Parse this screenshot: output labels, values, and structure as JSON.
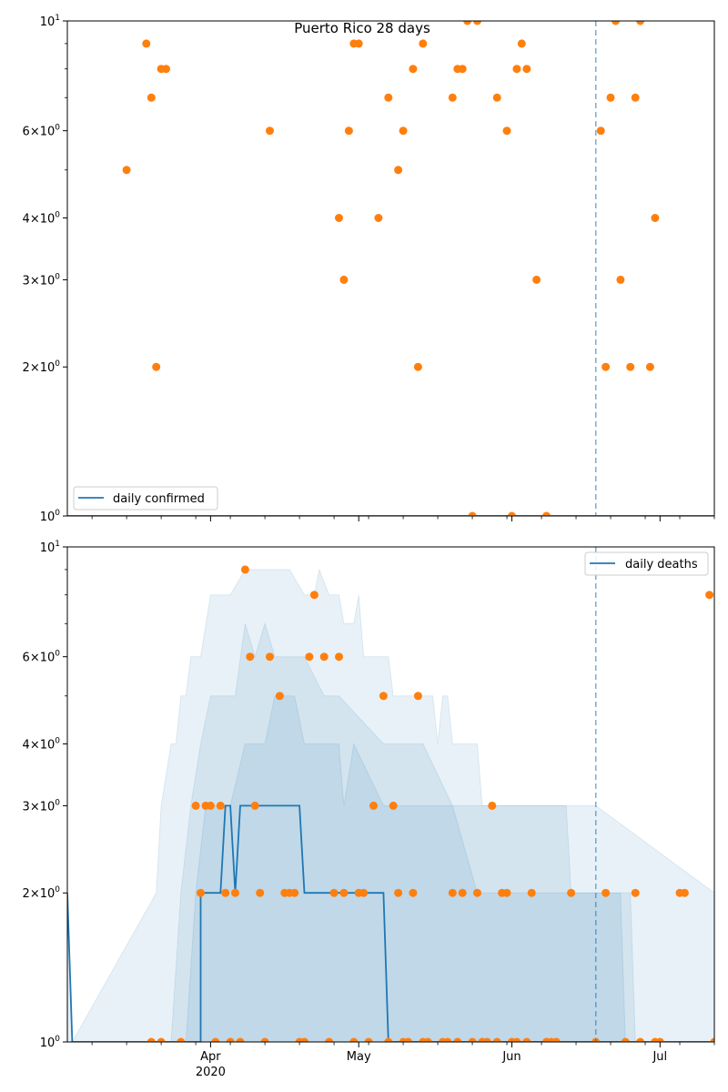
{
  "colors": {
    "line": "#1f77b4",
    "points": "#ff7f0e",
    "band": "#1f77b4",
    "vline": "#1f77b4"
  },
  "x_ticks": [
    {
      "date": "2020-04-01",
      "label": "Apr",
      "sublabel": "2020"
    },
    {
      "date": "2020-05-01",
      "label": "May",
      "sublabel": ""
    },
    {
      "date": "2020-06-01",
      "label": "Jun",
      "sublabel": ""
    },
    {
      "date": "2020-07-01",
      "label": "Jul",
      "sublabel": ""
    }
  ],
  "chart_data": [
    {
      "type": "scatter",
      "title": "Puerto Rico 28 days",
      "yscale": "log",
      "ylim": [
        1,
        10
      ],
      "xlim": [
        "2020-03-03",
        "2020-07-12"
      ],
      "y_tick_labels": [
        "10^0",
        "2×10^0",
        "3×10^0",
        "4×10^0",
        "6×10^0",
        "10^1"
      ],
      "y_ticks": [
        1,
        2,
        3,
        4,
        6,
        10
      ],
      "vline_date": "2020-06-18",
      "legend": {
        "position": "lower-left",
        "entries": [
          "daily confirmed"
        ]
      },
      "line": {
        "name": "daily confirmed",
        "x": [
          "2020-03-03",
          "2020-07-12"
        ],
        "y": [
          1,
          1
        ]
      },
      "points": {
        "x": [
          "2020-03-15",
          "2020-03-19",
          "2020-03-20",
          "2020-03-21",
          "2020-03-22",
          "2020-03-23",
          "2020-04-13",
          "2020-04-27",
          "2020-04-28",
          "2020-04-29",
          "2020-04-30",
          "2020-05-01",
          "2020-05-05",
          "2020-05-07",
          "2020-05-09",
          "2020-05-10",
          "2020-05-12",
          "2020-05-13",
          "2020-05-14",
          "2020-05-20",
          "2020-05-21",
          "2020-05-22",
          "2020-05-23",
          "2020-05-24",
          "2020-05-25",
          "2020-05-29",
          "2020-05-31",
          "2020-06-01",
          "2020-06-02",
          "2020-06-03",
          "2020-06-04",
          "2020-06-06",
          "2020-06-08",
          "2020-06-19",
          "2020-06-20",
          "2020-06-21",
          "2020-06-22",
          "2020-06-23",
          "2020-06-25",
          "2020-06-26",
          "2020-06-27",
          "2020-06-29",
          "2020-06-30"
        ],
        "y": [
          5,
          9,
          7,
          2,
          8,
          8,
          6,
          4,
          3,
          6,
          9,
          9,
          4,
          7,
          5,
          6,
          8,
          2,
          9,
          7,
          8,
          8,
          10,
          1,
          10,
          7,
          6,
          1,
          8,
          9,
          8,
          3,
          1,
          6,
          2,
          7,
          10,
          3,
          2,
          7,
          10,
          2,
          4
        ]
      }
    },
    {
      "type": "scatter",
      "title": "",
      "yscale": "log",
      "ylim": [
        1,
        10
      ],
      "xlim": [
        "2020-03-03",
        "2020-07-12"
      ],
      "y_tick_labels": [
        "10^0",
        "2×10^0",
        "3×10^0",
        "4×10^0",
        "6×10^0",
        "10^1"
      ],
      "y_ticks": [
        1,
        2,
        3,
        4,
        6,
        10
      ],
      "vline_date": "2020-06-18",
      "legend": {
        "position": "upper-right",
        "entries": [
          "daily deaths"
        ]
      },
      "line": {
        "name": "daily deaths",
        "x": [
          "2020-03-03",
          "2020-03-04",
          "2020-03-30",
          "2020-03-30",
          "2020-04-03",
          "2020-04-04",
          "2020-04-05",
          "2020-04-06",
          "2020-04-07",
          "2020-04-08",
          "2020-04-19",
          "2020-04-20",
          "2020-05-06",
          "2020-05-07",
          "2020-07-12"
        ],
        "y": [
          2,
          1,
          1,
          2,
          2,
          3,
          3,
          2,
          3,
          3,
          3,
          2,
          2,
          1,
          1
        ]
      },
      "bands": [
        {
          "x": [
            "2020-03-03",
            "2020-03-04",
            "2020-03-21",
            "2020-03-22",
            "2020-03-24",
            "2020-03-25",
            "2020-03-26",
            "2020-03-27",
            "2020-03-28",
            "2020-03-30",
            "2020-04-01",
            "2020-04-05",
            "2020-04-08",
            "2020-04-10",
            "2020-04-15",
            "2020-04-17",
            "2020-04-20",
            "2020-04-22",
            "2020-04-23",
            "2020-04-25",
            "2020-04-27",
            "2020-04-28",
            "2020-04-30",
            "2020-05-01",
            "2020-05-02",
            "2020-05-07",
            "2020-05-08",
            "2020-05-16",
            "2020-05-17",
            "2020-05-18",
            "2020-05-19",
            "2020-05-20",
            "2020-05-21",
            "2020-05-25",
            "2020-05-26",
            "2020-06-07",
            "2020-06-18",
            "2020-07-12"
          ],
          "lo": [
            1,
            1,
            1,
            1,
            1,
            1,
            1,
            1,
            1,
            1,
            1,
            1,
            1,
            1,
            1,
            1,
            1,
            1,
            1,
            1,
            1,
            1,
            1,
            1,
            1,
            1,
            1,
            1,
            1,
            1,
            1,
            1,
            1,
            1,
            1,
            1,
            1,
            1
          ],
          "hi": [
            2,
            1,
            2,
            3,
            4,
            4,
            5,
            5,
            6,
            6,
            8,
            8,
            9,
            9,
            9,
            9,
            8,
            8,
            9,
            8,
            8,
            7,
            7,
            8,
            6,
            6,
            5,
            5,
            4,
            5,
            5,
            4,
            4,
            4,
            3,
            3,
            3,
            2
          ]
        },
        {
          "x": [
            "2020-03-03",
            "2020-03-24",
            "2020-03-26",
            "2020-03-28",
            "2020-03-30",
            "2020-04-01",
            "2020-04-06",
            "2020-04-08",
            "2020-04-10",
            "2020-04-12",
            "2020-04-14",
            "2020-04-20",
            "2020-04-24",
            "2020-04-27",
            "2020-05-06",
            "2020-05-14",
            "2020-05-20",
            "2020-06-12",
            "2020-06-13",
            "2020-06-23",
            "2020-06-24",
            "2020-07-12"
          ],
          "lo": [
            1,
            1,
            1,
            1,
            1,
            1,
            1,
            1,
            1,
            1,
            1,
            1,
            1,
            1,
            1,
            1,
            1,
            1,
            1,
            1,
            1,
            1
          ],
          "hi": [
            1,
            1,
            2,
            3,
            4,
            5,
            5,
            7,
            6,
            7,
            6,
            6,
            5,
            5,
            4,
            4,
            3,
            3,
            2,
            2,
            1,
            1
          ]
        },
        {
          "x": [
            "2020-03-03",
            "2020-03-27",
            "2020-03-29",
            "2020-03-31",
            "2020-04-05",
            "2020-04-08",
            "2020-04-12",
            "2020-04-14",
            "2020-04-18",
            "2020-04-20",
            "2020-04-27",
            "2020-04-28",
            "2020-04-30",
            "2020-05-06",
            "2020-05-20",
            "2020-05-25",
            "2020-06-08",
            "2020-06-20",
            "2020-06-25",
            "2020-06-26",
            "2020-07-12"
          ],
          "lo": [
            1,
            1,
            1,
            1,
            1,
            1,
            1,
            1,
            1,
            1,
            1,
            1,
            1,
            1,
            1,
            1,
            1,
            1,
            1,
            1,
            1
          ],
          "hi": [
            1,
            1,
            2,
            3,
            3,
            4,
            4,
            5,
            5,
            4,
            4,
            3,
            4,
            3,
            3,
            2,
            2,
            2,
            2,
            1,
            1
          ]
        }
      ],
      "points": {
        "x": [
          "2020-03-20",
          "2020-03-22",
          "2020-03-26",
          "2020-03-29",
          "2020-03-30",
          "2020-03-31",
          "2020-04-01",
          "2020-04-02",
          "2020-04-03",
          "2020-04-04",
          "2020-04-05",
          "2020-04-06",
          "2020-04-07",
          "2020-04-08",
          "2020-04-09",
          "2020-04-10",
          "2020-04-11",
          "2020-04-12",
          "2020-04-13",
          "2020-04-15",
          "2020-04-16",
          "2020-04-17",
          "2020-04-18",
          "2020-04-19",
          "2020-04-20",
          "2020-04-21",
          "2020-04-22",
          "2020-04-24",
          "2020-04-25",
          "2020-04-26",
          "2020-04-27",
          "2020-04-28",
          "2020-04-30",
          "2020-05-01",
          "2020-05-02",
          "2020-05-03",
          "2020-05-04",
          "2020-05-06",
          "2020-05-07",
          "2020-05-08",
          "2020-05-09",
          "2020-05-10",
          "2020-05-11",
          "2020-05-12",
          "2020-05-13",
          "2020-05-14",
          "2020-05-15",
          "2020-05-18",
          "2020-05-19",
          "2020-05-20",
          "2020-05-21",
          "2020-05-22",
          "2020-05-24",
          "2020-05-25",
          "2020-05-26",
          "2020-05-27",
          "2020-05-28",
          "2020-05-29",
          "2020-05-30",
          "2020-05-31",
          "2020-06-01",
          "2020-06-02",
          "2020-06-04",
          "2020-06-05",
          "2020-06-08",
          "2020-06-09",
          "2020-06-10",
          "2020-06-13",
          "2020-06-18",
          "2020-06-20",
          "2020-06-24",
          "2020-06-26",
          "2020-06-27",
          "2020-06-30",
          "2020-07-01",
          "2020-07-05",
          "2020-07-06",
          "2020-07-11",
          "2020-07-12"
        ],
        "y": [
          1,
          1,
          1,
          3,
          2,
          3,
          3,
          1,
          3,
          2,
          1,
          2,
          1,
          9,
          6,
          3,
          2,
          1,
          6,
          5,
          2,
          2,
          2,
          1,
          1,
          6,
          8,
          6,
          1,
          2,
          6,
          2,
          1,
          2,
          2,
          1,
          3,
          5,
          1,
          3,
          2,
          1,
          1,
          2,
          5,
          1,
          1,
          1,
          1,
          2,
          1,
          2,
          1,
          2,
          1,
          1,
          3,
          1,
          2,
          2,
          1,
          1,
          1,
          2,
          1,
          1,
          1,
          2,
          1,
          2,
          1,
          2,
          1,
          1,
          1,
          2,
          2,
          8,
          1
        ]
      }
    }
  ]
}
